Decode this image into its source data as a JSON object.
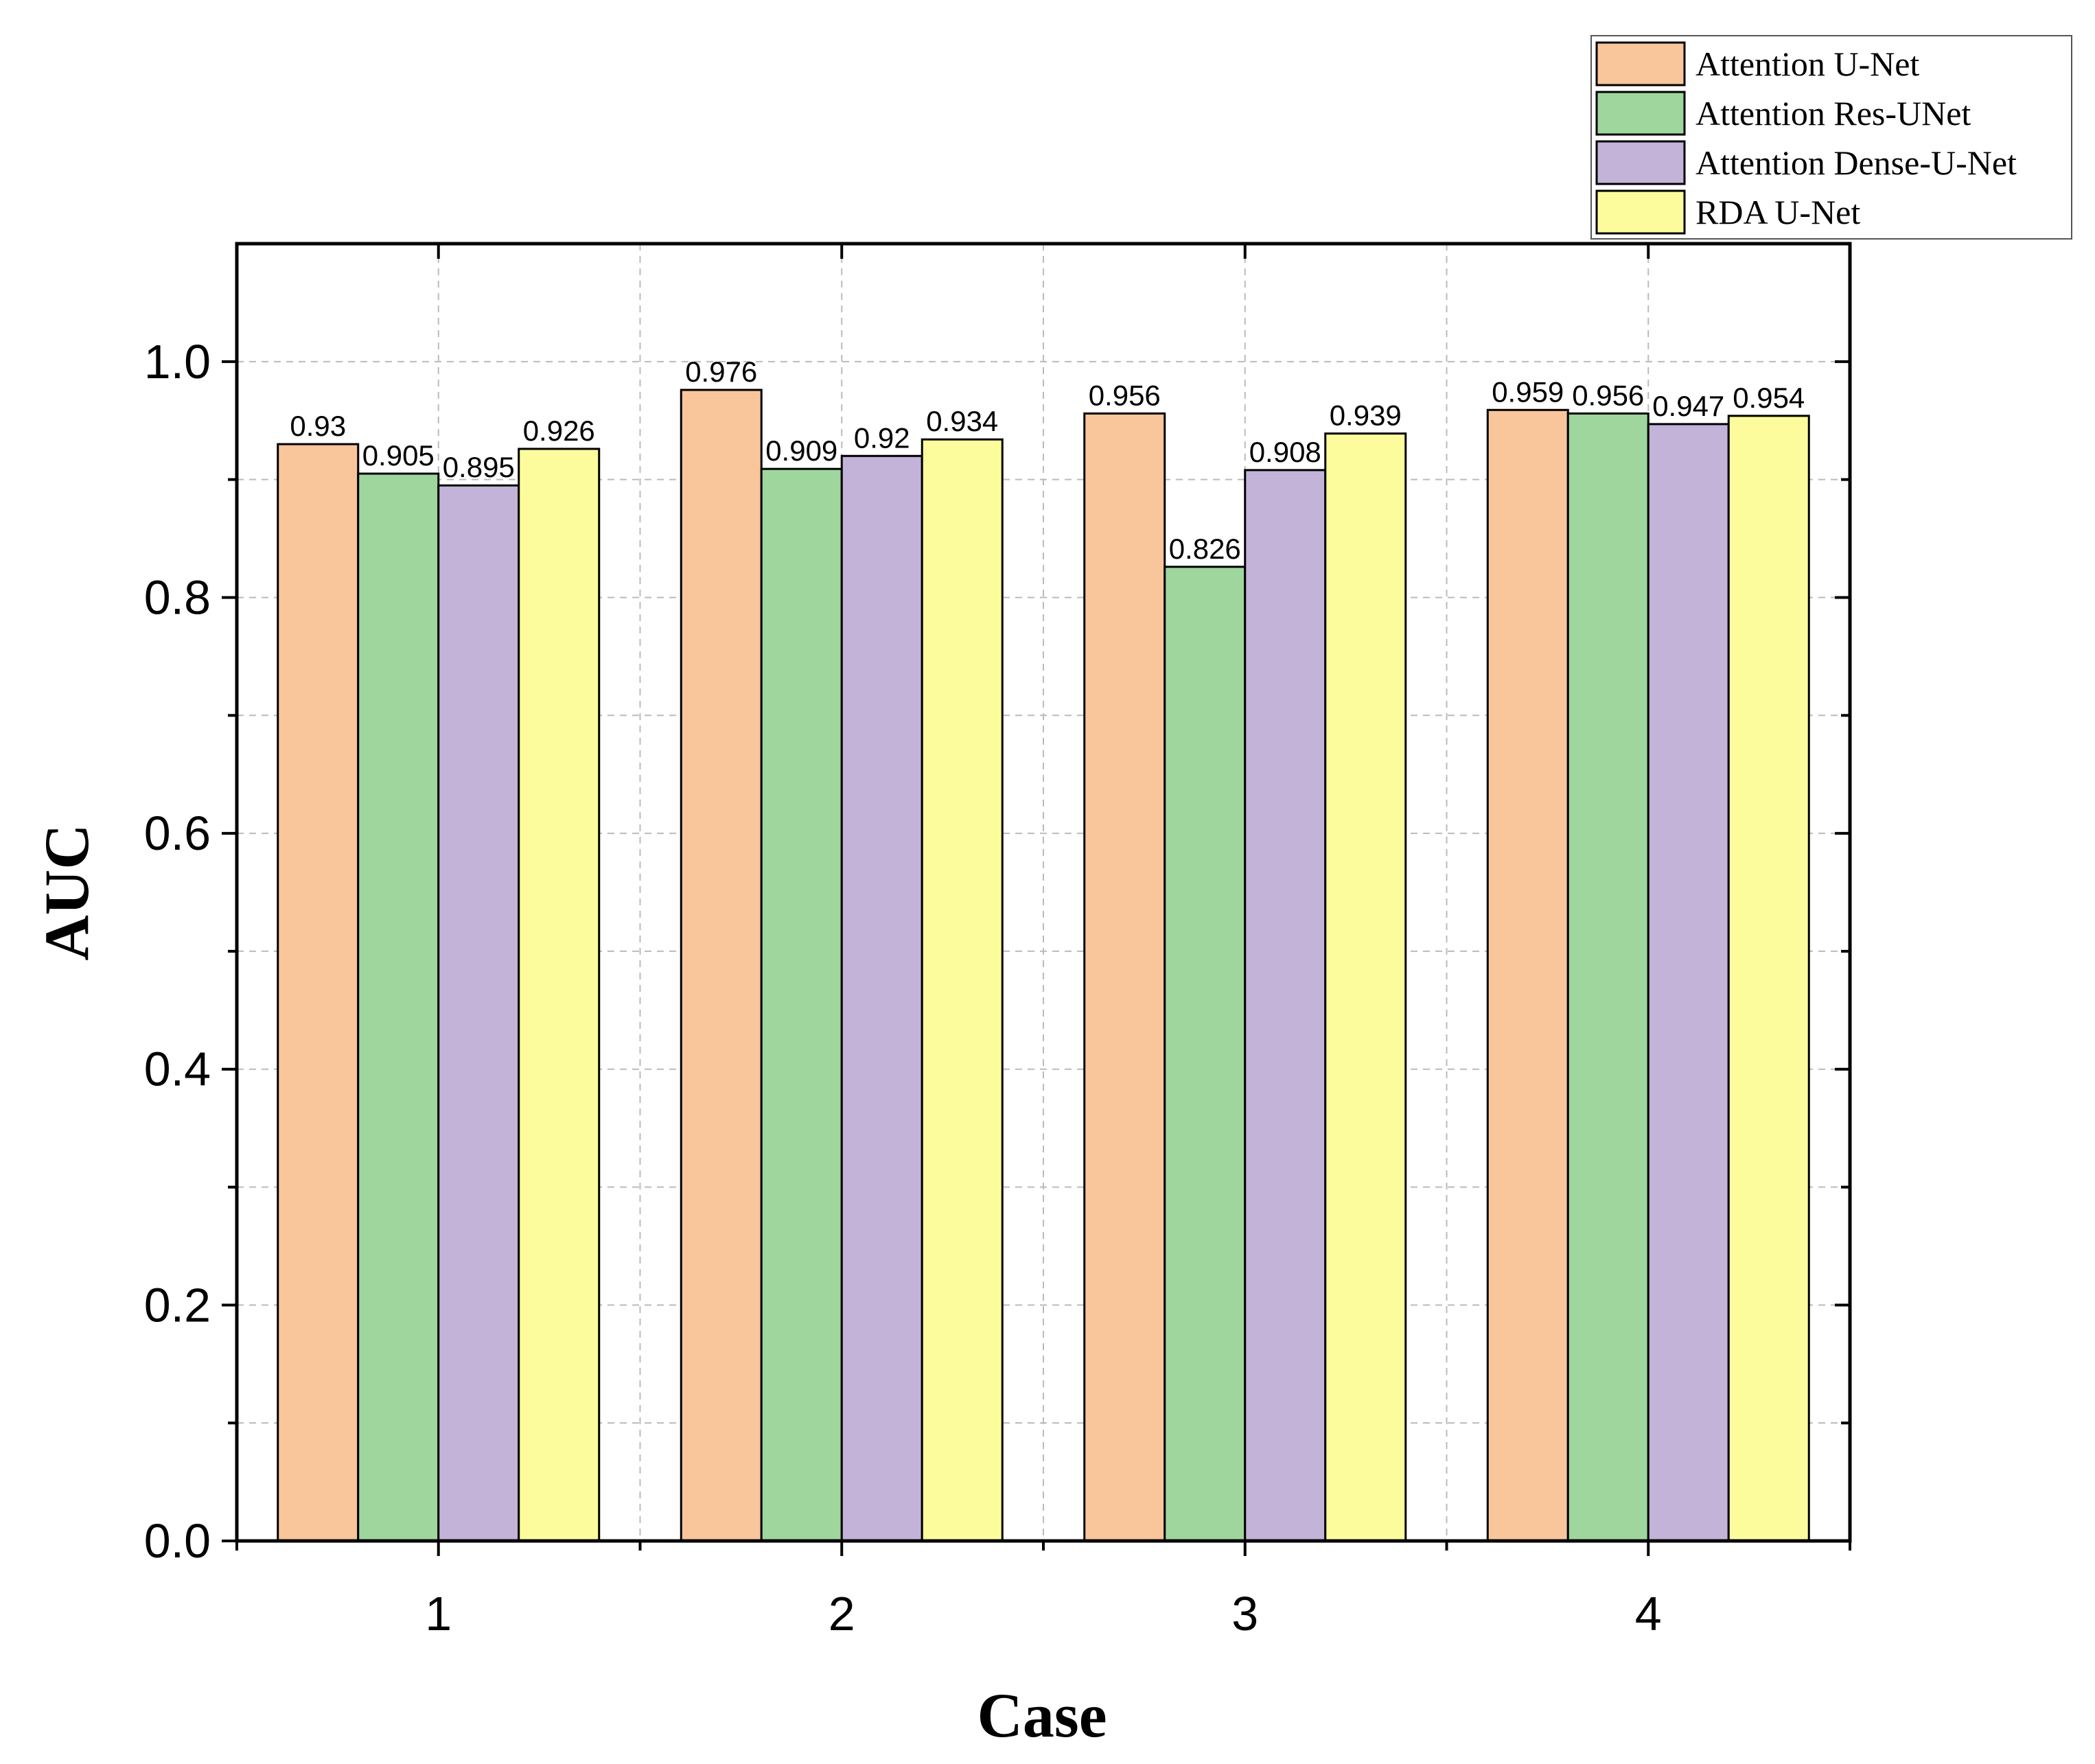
{
  "chart_data": {
    "type": "bar",
    "title": "",
    "xlabel": "Case",
    "ylabel": "AUC",
    "categories": [
      "1",
      "2",
      "3",
      "4"
    ],
    "series": [
      {
        "name": "Attention U-Net",
        "color": "#F9C59B",
        "values": [
          0.93,
          0.976,
          0.956,
          0.959
        ],
        "labels": [
          "0.93",
          "0.976",
          "0.956",
          "0.959"
        ]
      },
      {
        "name": "Attention Res-UNet",
        "color": "#9ED69E",
        "values": [
          0.905,
          0.909,
          0.826,
          0.956
        ],
        "labels": [
          "0.905",
          "0.909",
          "0.826",
          "0.956"
        ]
      },
      {
        "name": "Attention Dense-U-Net",
        "color": "#C3B3D8",
        "values": [
          0.895,
          0.92,
          0.908,
          0.947
        ],
        "labels": [
          "0.895",
          "0.92",
          "0.908",
          "0.947"
        ]
      },
      {
        "name": "RDA U-Net",
        "color": "#FCFC9C",
        "values": [
          0.926,
          0.934,
          0.939,
          0.954
        ],
        "labels": [
          "0.926",
          "0.934",
          "0.939",
          "0.954"
        ]
      }
    ],
    "ylim": [
      0,
      1.1
    ],
    "yticks": [
      "0.0",
      "0.2",
      "0.4",
      "0.6",
      "0.8",
      "1.0"
    ],
    "ytick_values": [
      0,
      0.2,
      0.4,
      0.6,
      0.8,
      1.0
    ],
    "grid": true,
    "legend_position": "top-right"
  }
}
